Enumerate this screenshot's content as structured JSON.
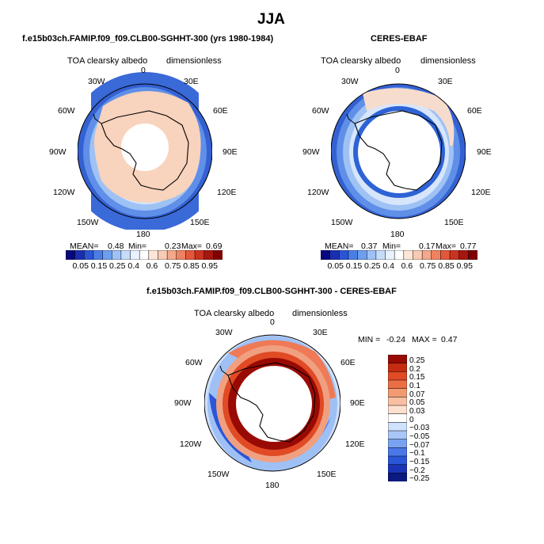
{
  "figure": {
    "season": "JJA",
    "variable": "TOA clearsky albedo",
    "units": "dimensionless"
  },
  "panels": [
    {
      "title": "f.e15b03ch.FAMIP.f09_f09.CLB00-SGHHT-300 (yrs 1980-1984)",
      "variable": "TOA clearsky albedo",
      "units": "dimensionless",
      "stats": {
        "mean_label": "MEAN=",
        "mean": "0.48",
        "min_label": "Min=",
        "min": "0.23",
        "max_label": "Max=",
        "max": "0.69"
      }
    },
    {
      "title": "CERES-EBAF",
      "variable": "TOA clearsky albedo",
      "units": "dimensionless",
      "stats": {
        "mean_label": "MEAN=",
        "mean": "0.37",
        "min_label": "Min=",
        "min": "0.17",
        "max_label": "Max=",
        "max": "0.77"
      }
    },
    {
      "title": "f.e15b03ch.FAMIP.f09_f09.CLB00-SGHHT-300 - CERES-EBAF",
      "variable": "TOA clearsky albedo",
      "units": "dimensionless",
      "stats": {
        "min_label": "MIN =",
        "min": "-0.24",
        "max_label": "MAX =",
        "max": "0.47"
      }
    }
  ],
  "map_labels": {
    "top": "0",
    "bottom": "180",
    "left": [
      "30W",
      "60W",
      "90W",
      "120W",
      "150W"
    ],
    "right": [
      "30E",
      "60E",
      "90E",
      "120E",
      "150E"
    ]
  },
  "colors": {
    "abs_scale": [
      "#08087e",
      "#1a2fb0",
      "#2c55d6",
      "#4a7ee6",
      "#6d9ff0",
      "#9ec1f7",
      "#c6dcfb",
      "#e8f1fe",
      "#ffffff",
      "#fde6d8",
      "#f9cbb4",
      "#f5a889",
      "#ef8261",
      "#e3573b",
      "#c9331f",
      "#a6170f",
      "#800000"
    ],
    "diff_scale": [
      "#0a1a80",
      "#1a34b8",
      "#2a56d8",
      "#4a78e8",
      "#7aa2f2",
      "#a9c6f8",
      "#d0e2fc",
      "#ffffff",
      "#fde0cf",
      "#f9bfa2",
      "#f29a72",
      "#ea6f45",
      "#e04a25",
      "#c52b10",
      "#9a0a04"
    ]
  },
  "chart_data": [
    {
      "type": "heatmap",
      "projection": "south-polar-stereographic",
      "title": "f.e15b03ch.FAMIP.f09_f09.CLB00-SGHHT-300 (yrs 1980-1984)",
      "colorbar": {
        "levels": [
          "0.05",
          "0.15",
          "0.25",
          "0.4",
          "0.6",
          "0.75",
          "0.85",
          "0.95"
        ],
        "orientation": "horizontal"
      },
      "description_zones": [
        {
          "region": "outer ring (~40S)",
          "value": 0.15
        },
        {
          "region": "mid ocean ring",
          "value": 0.25
        },
        {
          "region": "sea ice / continent",
          "value": 0.6
        },
        {
          "region": "polar cap (no data)",
          "value": null
        }
      ]
    },
    {
      "type": "heatmap",
      "projection": "south-polar-stereographic",
      "title": "CERES-EBAF",
      "colorbar": {
        "levels": [
          "0.05",
          "0.15",
          "0.25",
          "0.4",
          "0.6",
          "0.75",
          "0.85",
          "0.95"
        ],
        "orientation": "horizontal"
      },
      "description_zones": [
        {
          "region": "outer ring (~40S)",
          "value": 0.15
        },
        {
          "region": "mid ocean ring",
          "value": 0.25
        },
        {
          "region": "sea ice edge",
          "value": 0.4
        },
        {
          "region": "interior (no data)",
          "value": null
        }
      ]
    },
    {
      "type": "heatmap",
      "projection": "south-polar-stereographic",
      "title": "f.e15b03ch.FAMIP.f09_f09.CLB00-SGHHT-300 - CERES-EBAF",
      "colorbar": {
        "levels": [
          "0.25",
          "0.2",
          "0.15",
          "0.1",
          "0.07",
          "0.05",
          "0.03",
          "0",
          "-0.03",
          "-0.05",
          "-0.07",
          "-0.1",
          "-0.15",
          "-0.2",
          "-0.25"
        ],
        "orientation": "vertical"
      },
      "description_zones": [
        {
          "region": "outer ring",
          "value": -0.05
        },
        {
          "region": "sea ice edge ring",
          "value": 0.1
        },
        {
          "region": "inner annulus",
          "value": 0.25
        },
        {
          "region": "interior (no data)",
          "value": null
        }
      ]
    }
  ]
}
